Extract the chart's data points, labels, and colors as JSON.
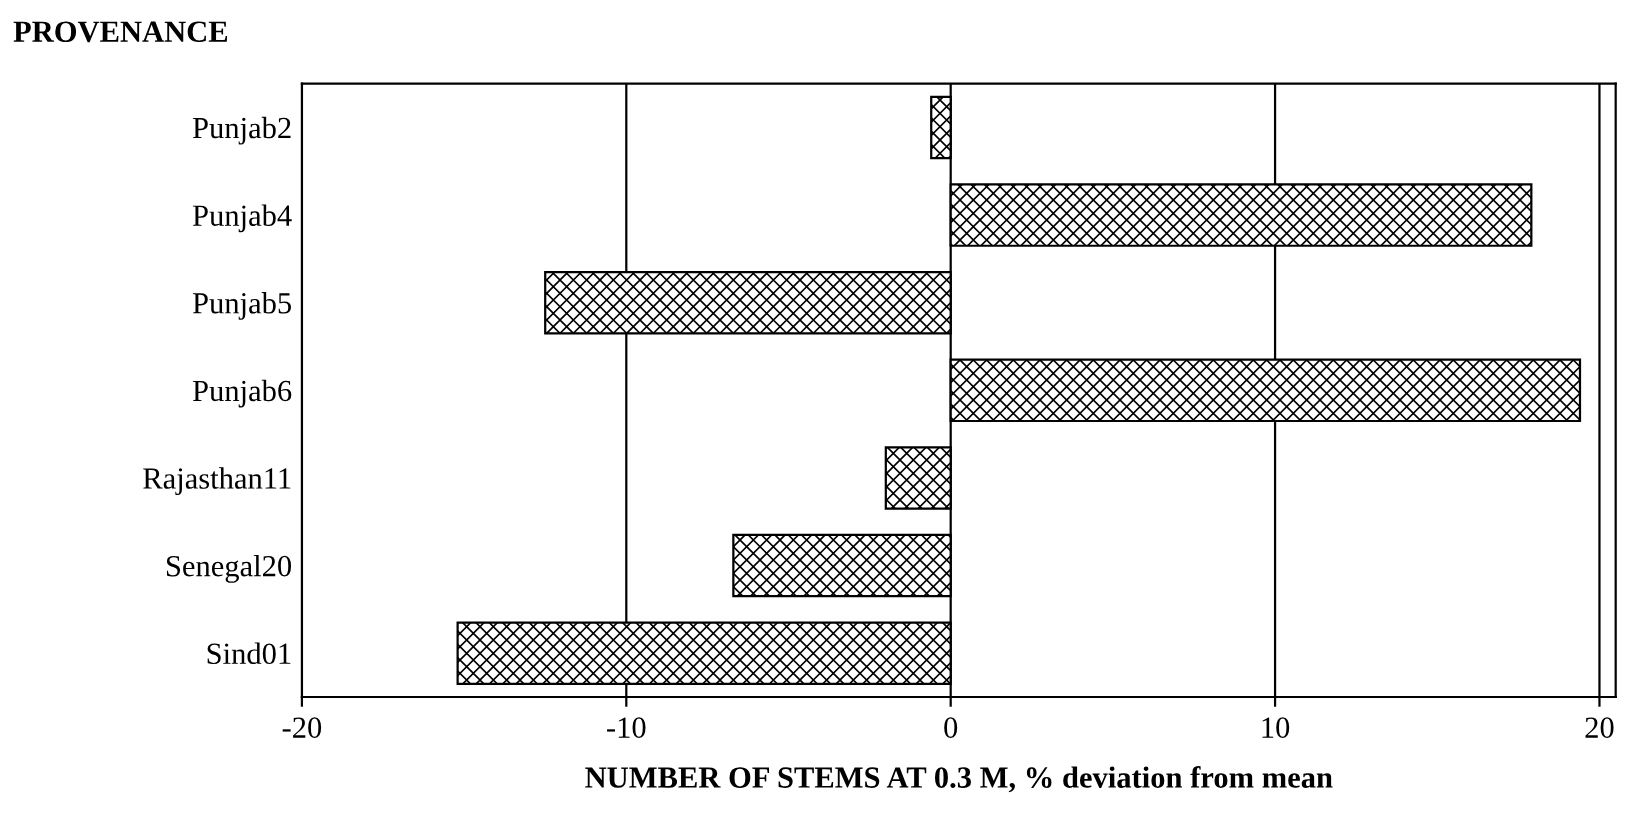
{
  "chart_data": {
    "type": "bar",
    "orientation": "horizontal",
    "title": "PROVENANCE",
    "xlabel": "NUMBER OF STEMS AT 0.3 M, % deviation from mean",
    "categories": [
      "Punjab2",
      "Punjab4",
      "Punjab5",
      "Punjab6",
      "Rajasthan11",
      "Senegal20",
      "Sind01"
    ],
    "values": [
      -0.6,
      17.9,
      -12.5,
      19.4,
      -2.0,
      -6.7,
      -15.2
    ],
    "color": "#000000",
    "xlim": [
      -20,
      20.5
    ],
    "xticks": [
      -20,
      -10,
      0,
      10,
      20
    ],
    "grid": "x",
    "legend": false
  }
}
